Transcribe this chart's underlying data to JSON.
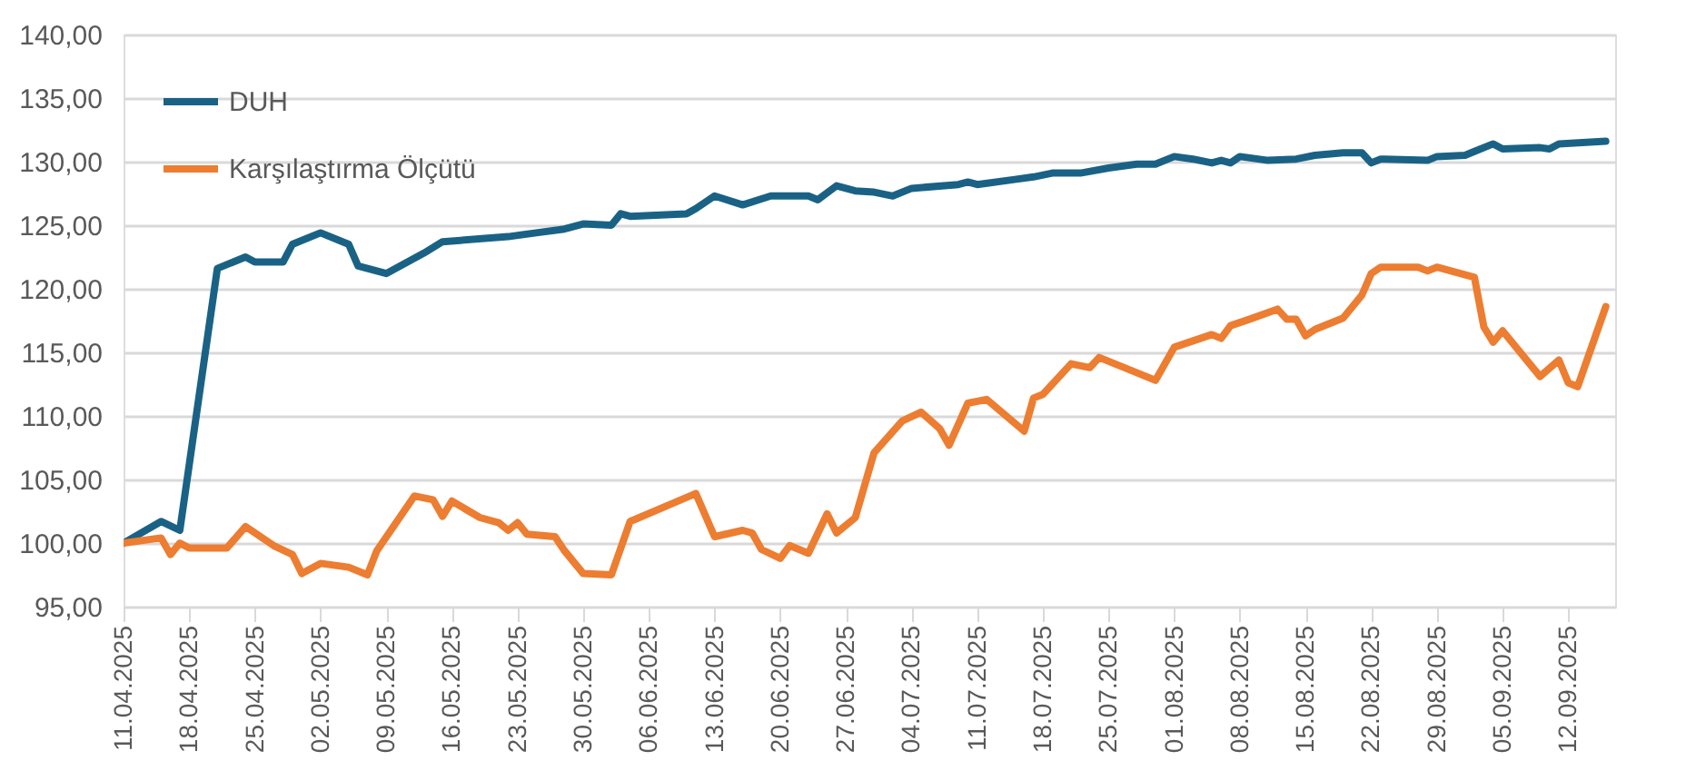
{
  "chart_data": {
    "type": "line",
    "legend": "top left",
    "grid": "y",
    "line_style": "solid",
    "marker": "none",
    "xlim": [
      "2025-04-11",
      "2025-09-17"
    ],
    "xticks": [
      {
        "value": "2025-04-11",
        "label": "11.04.2025"
      },
      {
        "value": "2025-04-18",
        "label": "18.04.2025"
      },
      {
        "value": "2025-04-25",
        "label": "25.04.2025"
      },
      {
        "value": "2025-05-02",
        "label": "02.05.2025"
      },
      {
        "value": "2025-05-09",
        "label": "09.05.2025"
      },
      {
        "value": "2025-05-16",
        "label": "16.05.2025"
      },
      {
        "value": "2025-05-23",
        "label": "23.05.2025"
      },
      {
        "value": "2025-05-30",
        "label": "30.05.2025"
      },
      {
        "value": "2025-06-06",
        "label": "06.06.2025"
      },
      {
        "value": "2025-06-13",
        "label": "13.06.2025"
      },
      {
        "value": "2025-06-20",
        "label": "20.06.2025"
      },
      {
        "value": "2025-06-27",
        "label": "27.06.2025"
      },
      {
        "value": "2025-07-04",
        "label": "04.07.2025"
      },
      {
        "value": "2025-07-11",
        "label": "11.07.2025"
      },
      {
        "value": "2025-07-18",
        "label": "18.07.2025"
      },
      {
        "value": "2025-07-25",
        "label": "25.07.2025"
      },
      {
        "value": "2025-08-01",
        "label": "01.08.2025"
      },
      {
        "value": "2025-08-08",
        "label": "08.08.2025"
      },
      {
        "value": "2025-08-15",
        "label": "15.08.2025"
      },
      {
        "value": "2025-08-22",
        "label": "22.08.2025"
      },
      {
        "value": "2025-08-29",
        "label": "29.08.2025"
      },
      {
        "value": "2025-09-05",
        "label": "05.09.2025"
      },
      {
        "value": "2025-09-12",
        "label": "12.09.2025"
      }
    ],
    "ylim": [
      95,
      140
    ],
    "yticks": [
      {
        "value": 95,
        "label": "95,00"
      },
      {
        "value": 100,
        "label": "100,00"
      },
      {
        "value": 105,
        "label": "105,00"
      },
      {
        "value": 110,
        "label": "110,00"
      },
      {
        "value": 115,
        "label": "115,00"
      },
      {
        "value": 120,
        "label": "120,00"
      },
      {
        "value": 125,
        "label": "125,00"
      },
      {
        "value": 130,
        "label": "130,00"
      },
      {
        "value": 135,
        "label": "135,00"
      },
      {
        "value": 140,
        "label": "140,00"
      }
    ],
    "series": [
      {
        "name": "DUH",
        "color": "#1a6285",
        "x": [
          "2025-04-11",
          "2025-04-15",
          "2025-04-17",
          "2025-04-21",
          "2025-04-24",
          "2025-04-25",
          "2025-04-28",
          "2025-04-29",
          "2025-05-02",
          "2025-05-05",
          "2025-05-06",
          "2025-05-09",
          "2025-05-13",
          "2025-05-15",
          "2025-05-22",
          "2025-05-25",
          "2025-05-28",
          "2025-05-30",
          "2025-06-02",
          "2025-06-03",
          "2025-06-04",
          "2025-06-10",
          "2025-06-11",
          "2025-06-13",
          "2025-06-16",
          "2025-06-19",
          "2025-06-23",
          "2025-06-24",
          "2025-06-26",
          "2025-06-28",
          "2025-06-30",
          "2025-07-02",
          "2025-07-04",
          "2025-07-09",
          "2025-07-10",
          "2025-07-11",
          "2025-07-15",
          "2025-07-17",
          "2025-07-19",
          "2025-07-22",
          "2025-07-25",
          "2025-07-28",
          "2025-07-30",
          "2025-08-01",
          "2025-08-03",
          "2025-08-05",
          "2025-08-06",
          "2025-08-07",
          "2025-08-08",
          "2025-08-11",
          "2025-08-14",
          "2025-08-16",
          "2025-08-19",
          "2025-08-21",
          "2025-08-22",
          "2025-08-23",
          "2025-08-28",
          "2025-08-29",
          "2025-09-01",
          "2025-09-02",
          "2025-09-04",
          "2025-09-05",
          "2025-09-09",
          "2025-09-10",
          "2025-09-11",
          "2025-09-16"
        ],
        "values": [
          100.0,
          101.7,
          101.0,
          121.6,
          122.5,
          122.1,
          122.1,
          123.5,
          124.4,
          123.5,
          121.8,
          121.2,
          122.8,
          123.7,
          124.1,
          124.4,
          124.7,
          125.1,
          125.0,
          125.9,
          125.7,
          125.9,
          126.3,
          127.3,
          126.6,
          127.3,
          127.3,
          127.0,
          128.1,
          127.7,
          127.6,
          127.3,
          127.9,
          128.2,
          128.4,
          128.2,
          128.6,
          128.8,
          129.1,
          129.1,
          129.5,
          129.8,
          129.8,
          130.4,
          130.2,
          129.9,
          130.1,
          129.9,
          130.4,
          130.1,
          130.2,
          130.5,
          130.7,
          130.7,
          129.9,
          130.2,
          130.1,
          130.4,
          130.5,
          130.8,
          131.4,
          131.0,
          131.1,
          131.0,
          131.4,
          131.6
        ]
      },
      {
        "name": "Karşılaştırma Ölçütü",
        "color": "#ed7d31",
        "x": [
          "2025-04-11",
          "2025-04-15",
          "2025-04-16",
          "2025-04-17",
          "2025-04-18",
          "2025-04-22",
          "2025-04-24",
          "2025-04-27",
          "2025-04-29",
          "2025-04-30",
          "2025-05-02",
          "2025-05-05",
          "2025-05-07",
          "2025-05-08",
          "2025-05-12",
          "2025-05-14",
          "2025-05-15",
          "2025-05-16",
          "2025-05-19",
          "2025-05-21",
          "2025-05-22",
          "2025-05-23",
          "2025-05-24",
          "2025-05-27",
          "2025-05-28",
          "2025-05-30",
          "2025-06-02",
          "2025-06-04",
          "2025-06-11",
          "2025-06-13",
          "2025-06-16",
          "2025-06-17",
          "2025-06-18",
          "2025-06-20",
          "2025-06-21",
          "2025-06-23",
          "2025-06-25",
          "2025-06-26",
          "2025-06-28",
          "2025-06-30",
          "2025-07-03",
          "2025-07-05",
          "2025-07-07",
          "2025-07-08",
          "2025-07-10",
          "2025-07-12",
          "2025-07-16",
          "2025-07-17",
          "2025-07-18",
          "2025-07-21",
          "2025-07-23",
          "2025-07-24",
          "2025-07-28",
          "2025-07-30",
          "2025-08-01",
          "2025-08-05",
          "2025-08-06",
          "2025-08-07",
          "2025-08-09",
          "2025-08-12",
          "2025-08-13",
          "2025-08-14",
          "2025-08-15",
          "2025-08-16",
          "2025-08-19",
          "2025-08-21",
          "2025-08-22",
          "2025-08-23",
          "2025-08-27",
          "2025-08-28",
          "2025-08-29",
          "2025-09-02",
          "2025-09-03",
          "2025-09-04",
          "2025-09-05",
          "2025-09-09",
          "2025-09-11",
          "2025-09-12",
          "2025-09-13",
          "2025-09-16"
        ],
        "values": [
          100.0,
          100.4,
          99.1,
          100.0,
          99.6,
          99.6,
          101.3,
          99.8,
          99.1,
          97.6,
          98.4,
          98.1,
          97.5,
          99.4,
          103.7,
          103.4,
          102.1,
          103.3,
          102.0,
          101.6,
          101.0,
          101.6,
          100.7,
          100.5,
          99.4,
          97.6,
          97.5,
          101.7,
          103.9,
          100.5,
          101.0,
          100.8,
          99.5,
          98.8,
          99.8,
          99.2,
          102.3,
          100.8,
          102.0,
          107.1,
          109.6,
          110.3,
          109.0,
          107.7,
          111.0,
          111.3,
          108.8,
          111.4,
          111.7,
          114.1,
          113.8,
          114.6,
          113.4,
          112.8,
          115.4,
          116.4,
          116.1,
          117.1,
          117.6,
          118.4,
          117.6,
          117.6,
          116.3,
          116.8,
          117.7,
          119.5,
          121.2,
          121.7,
          121.7,
          121.4,
          121.7,
          120.9,
          117.0,
          115.8,
          116.7,
          113.1,
          114.4,
          112.6,
          112.3,
          118.6
        ]
      }
    ]
  }
}
